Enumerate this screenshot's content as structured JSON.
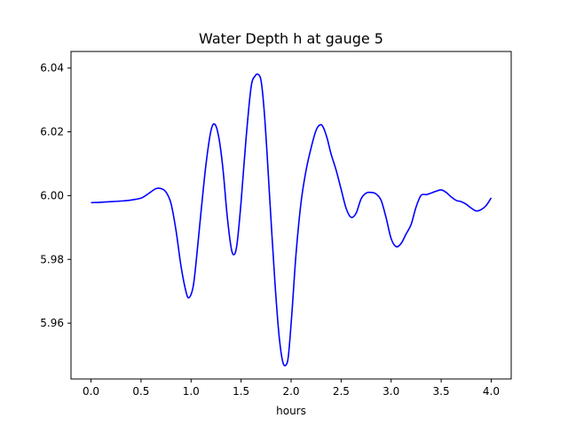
{
  "chart_data": {
    "type": "line",
    "title": "Water Depth h at gauge 5",
    "xlabel": "hours",
    "ylabel": "",
    "xlim": [
      -0.2,
      4.2
    ],
    "ylim": [
      5.9425,
      6.0452
    ],
    "x_ticks": [
      "0.0",
      "0.5",
      "1.0",
      "1.5",
      "2.0",
      "2.5",
      "3.0",
      "3.5",
      "4.0"
    ],
    "y_ticks": [
      "5.96",
      "5.98",
      "6.00",
      "6.02",
      "6.04"
    ],
    "grid": false,
    "series": [
      {
        "color": "#0000ff",
        "x": [
          0.0,
          0.1,
          0.2,
          0.3,
          0.4,
          0.5,
          0.55,
          0.6,
          0.65,
          0.7,
          0.75,
          0.8,
          0.85,
          0.9,
          0.95,
          0.98,
          1.02,
          1.05,
          1.1,
          1.15,
          1.2,
          1.24,
          1.28,
          1.32,
          1.36,
          1.4,
          1.43,
          1.46,
          1.5,
          1.55,
          1.6,
          1.64,
          1.67,
          1.7,
          1.73,
          1.76,
          1.8,
          1.84,
          1.88,
          1.92,
          1.96,
          1.98,
          2.01,
          2.05,
          2.1,
          2.15,
          2.2,
          2.25,
          2.29,
          2.32,
          2.36,
          2.4,
          2.45,
          2.5,
          2.55,
          2.6,
          2.65,
          2.7,
          2.75,
          2.8,
          2.85,
          2.9,
          2.95,
          3.0,
          3.05,
          3.1,
          3.15,
          3.2,
          3.25,
          3.3,
          3.35,
          3.4,
          3.45,
          3.5,
          3.55,
          3.6,
          3.65,
          3.7,
          3.75,
          3.8,
          3.85,
          3.9,
          3.95,
          4.0
        ],
        "values": [
          5.9978,
          5.9979,
          5.9981,
          5.9983,
          5.9986,
          5.9992,
          6.0001,
          6.0012,
          6.0022,
          6.0022,
          6.0011,
          5.9975,
          5.989,
          5.9778,
          5.9698,
          5.968,
          5.9713,
          5.979,
          5.995,
          6.01,
          6.0205,
          6.0223,
          6.0178,
          6.008,
          5.994,
          5.9838,
          5.9815,
          5.985,
          5.998,
          6.018,
          6.034,
          6.0375,
          6.038,
          6.036,
          6.027,
          6.013,
          5.992,
          5.972,
          5.956,
          5.9475,
          5.9475,
          5.952,
          5.964,
          5.982,
          5.998,
          6.008,
          6.015,
          6.0205,
          6.0222,
          6.0215,
          6.018,
          6.013,
          6.008,
          6.002,
          5.996,
          5.9932,
          5.9945,
          5.999,
          6.0008,
          6.001,
          6.0005,
          5.9985,
          5.993,
          5.9865,
          5.984,
          5.985,
          5.988,
          5.991,
          5.9965,
          6.0001,
          6.0003,
          6.0008,
          6.0014,
          6.0018,
          6.001,
          5.9996,
          5.9985,
          5.9981,
          5.9973,
          5.9961,
          5.9952,
          5.9956,
          5.9969,
          5.9993
        ]
      }
    ]
  }
}
